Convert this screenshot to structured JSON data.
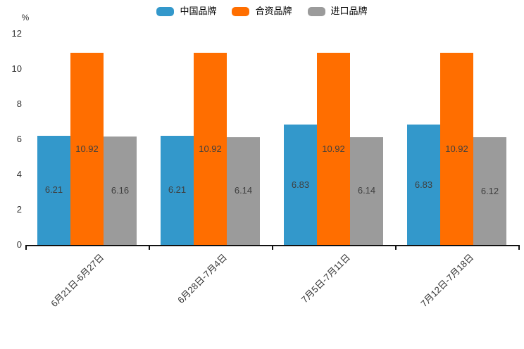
{
  "chart_data": {
    "type": "bar",
    "title": "",
    "ylabel": "%",
    "xlabel": "",
    "ylim": [
      0,
      12
    ],
    "yticks": [
      0,
      2,
      4,
      6,
      8,
      10,
      12
    ],
    "grid": false,
    "legend_position": "top-center",
    "categories": [
      "6月21日-6月27日",
      "6月28日-7月4日",
      "7月5日-7月11日",
      "7月12日-7月18日"
    ],
    "series": [
      {
        "id": "china-brand",
        "name": "中国品牌",
        "color": "#3398cb",
        "values": [
          6.21,
          6.21,
          6.83,
          6.83
        ]
      },
      {
        "id": "joint-venture-brand",
        "name": "合资品牌",
        "color": "#ff6e00",
        "values": [
          10.92,
          10.92,
          10.92,
          10.92
        ]
      },
      {
        "id": "import-brand",
        "name": "进口品牌",
        "color": "#9b9b9b",
        "values": [
          6.16,
          6.14,
          6.14,
          6.12
        ]
      }
    ],
    "value_label_decimals": 2,
    "colors": {
      "axis": "#111111",
      "tick_text": "#333333",
      "value_text": "#3f3f3f",
      "background": "#ffffff"
    }
  }
}
